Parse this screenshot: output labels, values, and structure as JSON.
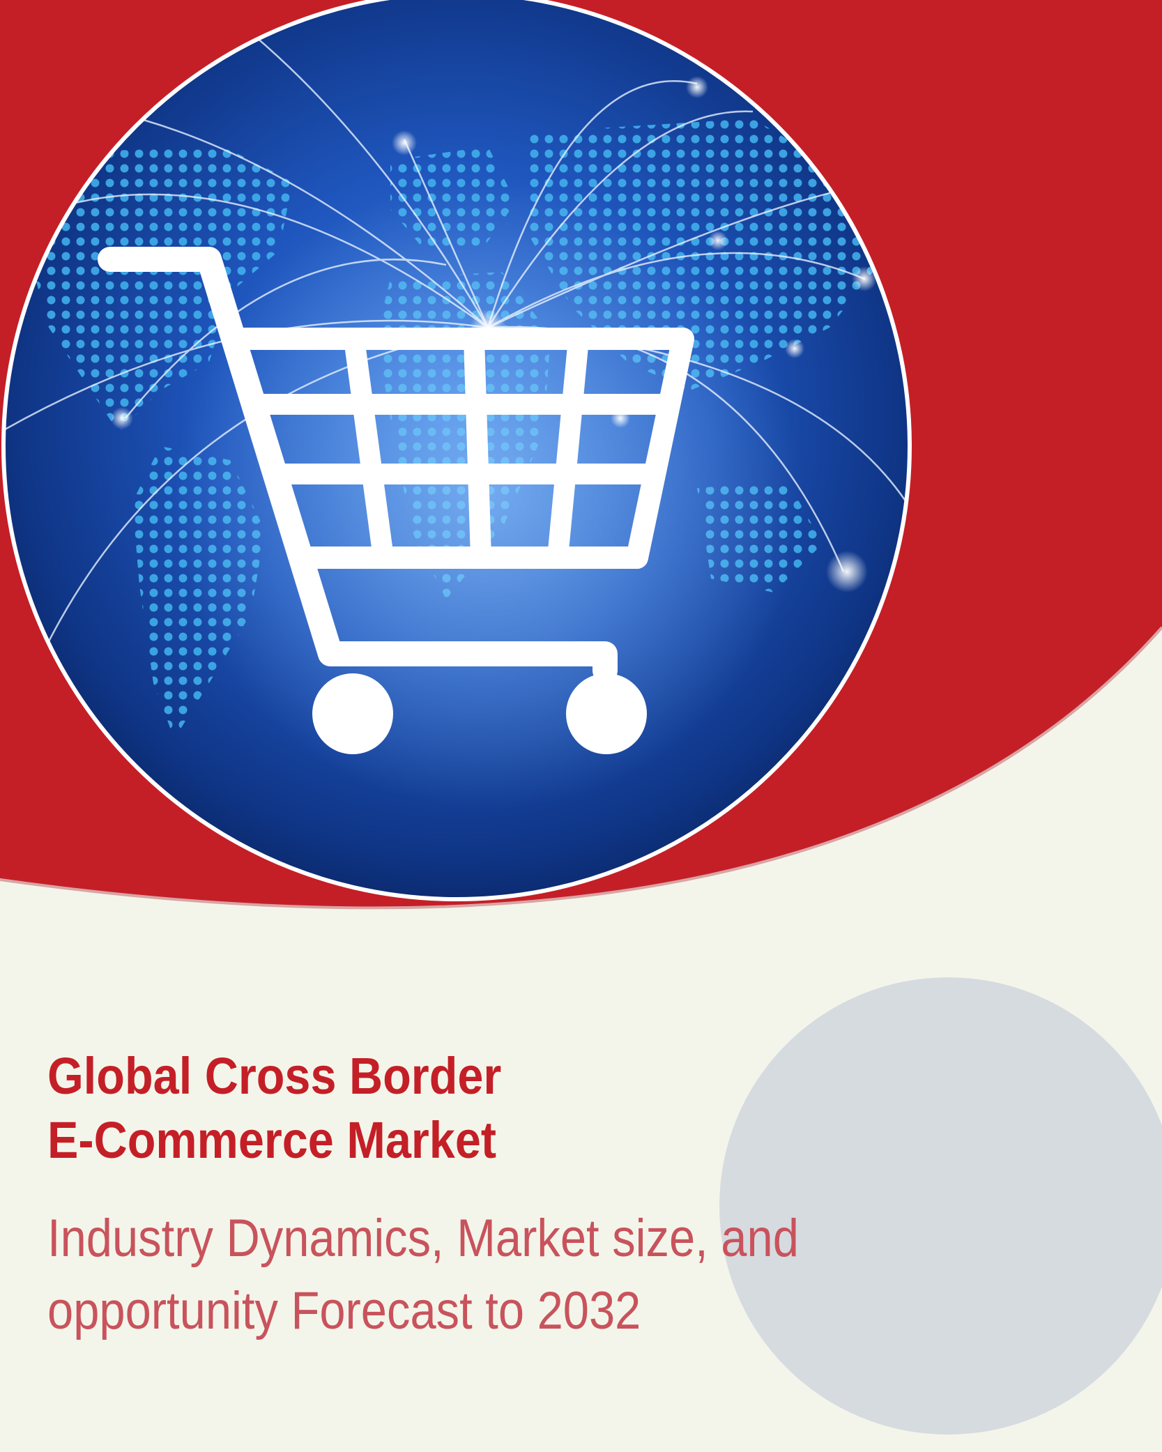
{
  "cover": {
    "title_lines": [
      "Global Cross Border",
      "E-Commerce Market"
    ],
    "subtitle_lines": [
      "Industry Dynamics, Market size, and",
      "opportunity Forecast to 2032"
    ]
  },
  "colors": {
    "brand_red": "#c41f27",
    "subtitle_red": "#c8535c",
    "background": "#f4f5ea",
    "grey_circle": "#d6dbe0",
    "image_blue": "#0c2f7a"
  },
  "image": {
    "subject": "shopping-cart-icon over dotted world map with network arcs"
  }
}
